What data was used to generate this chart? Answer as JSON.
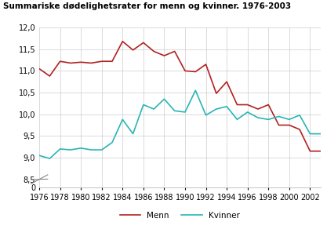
{
  "title": "Summariske dødelighetsrater for menn og kvinner. 1976-2003",
  "years": [
    1976,
    1977,
    1978,
    1979,
    1980,
    1981,
    1982,
    1983,
    1984,
    1985,
    1986,
    1987,
    1988,
    1989,
    1990,
    1991,
    1992,
    1993,
    1994,
    1995,
    1996,
    1997,
    1998,
    1999,
    2000,
    2001,
    2002,
    2003
  ],
  "menn": [
    11.05,
    10.88,
    11.22,
    11.18,
    11.2,
    11.18,
    11.22,
    11.22,
    11.68,
    11.48,
    11.65,
    11.45,
    11.35,
    11.45,
    11.0,
    10.98,
    11.15,
    10.48,
    10.75,
    10.22,
    10.22,
    10.12,
    10.22,
    9.75,
    9.75,
    9.65,
    9.15,
    9.15
  ],
  "kvinner": [
    9.05,
    8.98,
    9.2,
    9.18,
    9.22,
    9.18,
    9.18,
    9.35,
    9.88,
    9.55,
    10.22,
    10.12,
    10.35,
    10.08,
    10.05,
    10.55,
    9.98,
    10.12,
    10.18,
    9.88,
    10.05,
    9.92,
    9.88,
    9.95,
    9.88,
    9.98,
    9.55,
    9.55
  ],
  "menn_color": "#b22222",
  "kvinner_color": "#2ab5b5",
  "background_color": "#ffffff",
  "grid_color": "#cccccc",
  "ylim_data_bottom": 8.5,
  "ylim_data_top": 12.0,
  "yticks_data": [
    8.5,
    9.0,
    9.5,
    10.0,
    10.5,
    11.0,
    11.5,
    12.0
  ],
  "xticks": [
    1976,
    1978,
    1980,
    1982,
    1984,
    1986,
    1988,
    1990,
    1992,
    1994,
    1996,
    1998,
    2000,
    2002
  ],
  "legend_menn": "Menn",
  "legend_kvinner": "Kvinner"
}
